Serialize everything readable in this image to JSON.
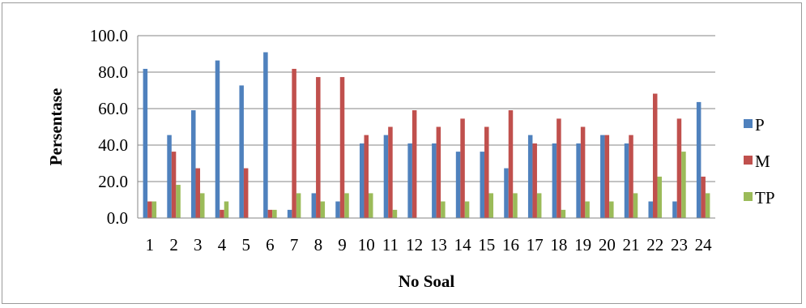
{
  "chart_data": {
    "type": "bar",
    "title": "",
    "xlabel": "No Soal",
    "ylabel": "Persentase",
    "ylim": [
      0,
      100
    ],
    "yticks": [
      "0.0",
      "20.0",
      "40.0",
      "60.0",
      "80.0",
      "100.0"
    ],
    "grid": true,
    "legend_position": "right",
    "categories": [
      "1",
      "2",
      "3",
      "4",
      "5",
      "6",
      "7",
      "8",
      "9",
      "10",
      "11",
      "12",
      "13",
      "14",
      "15",
      "16",
      "17",
      "18",
      "19",
      "20",
      "21",
      "22",
      "23",
      "24"
    ],
    "series": [
      {
        "name": "P",
        "color": "#4f81bd",
        "values": [
          81.8,
          45.5,
          59.1,
          86.4,
          72.7,
          90.9,
          4.5,
          13.6,
          9.1,
          40.9,
          45.5,
          40.9,
          40.9,
          36.4,
          36.4,
          27.3,
          45.5,
          40.9,
          40.9,
          45.5,
          40.9,
          9.1,
          9.1,
          63.6
        ]
      },
      {
        "name": "M",
        "color": "#c0504d",
        "values": [
          9.1,
          36.4,
          27.3,
          4.5,
          27.3,
          4.5,
          81.8,
          77.3,
          77.3,
          45.5,
          50.0,
          59.1,
          50.0,
          54.5,
          50.0,
          59.1,
          40.9,
          54.5,
          50.0,
          45.5,
          45.5,
          68.2,
          54.5,
          22.7
        ]
      },
      {
        "name": "TP",
        "color": "#9bbb59",
        "values": [
          9.1,
          18.2,
          13.6,
          9.1,
          0.0,
          4.5,
          13.6,
          9.1,
          13.6,
          13.6,
          4.5,
          0.0,
          9.1,
          9.1,
          13.6,
          13.6,
          13.6,
          4.5,
          9.1,
          9.1,
          13.6,
          22.7,
          36.4,
          13.6
        ]
      }
    ]
  }
}
